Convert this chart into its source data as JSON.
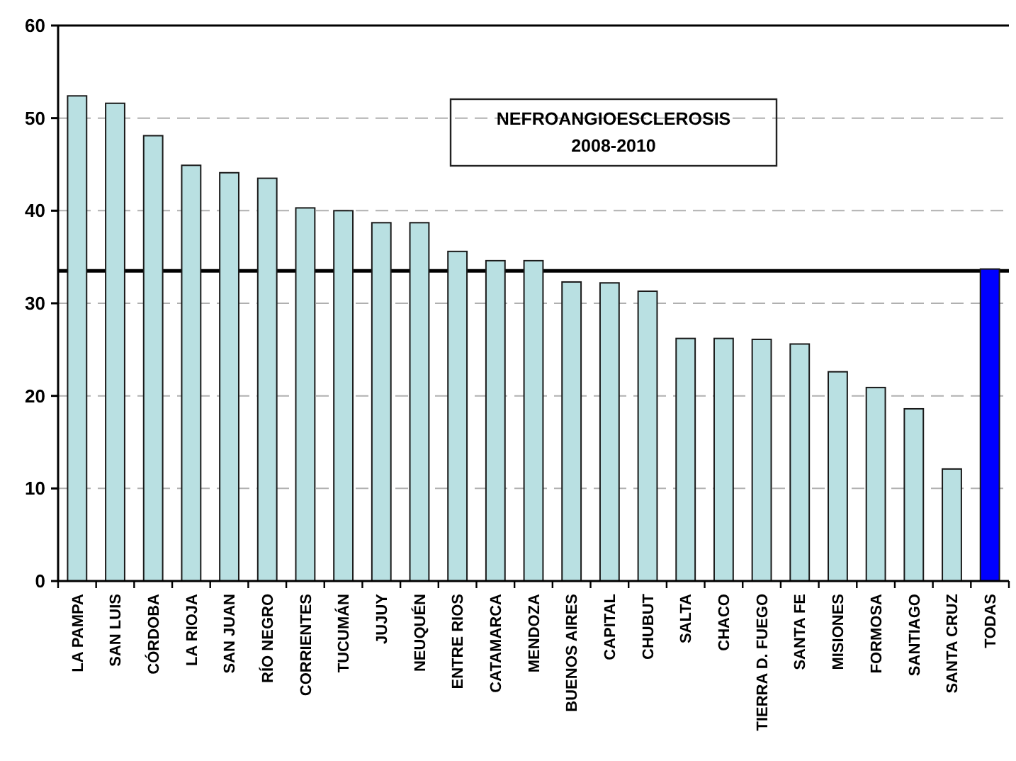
{
  "chart_data": {
    "type": "bar",
    "title": "NEFROANGIOESCLEROSIS",
    "subtitle": "2008-2010",
    "categories": [
      "LA PAMPA",
      "SAN LUIS",
      "CÓRDOBA",
      "LA RIOJA",
      "SAN JUAN",
      "RÍO NEGRO",
      "CORRIENTES",
      "TUCUMÁN",
      "JUJUY",
      "NEUQUÉN",
      "ENTRE RIOS",
      "CATAMARCA",
      "MENDOZA",
      "BUENOS AIRES",
      "CAPITAL",
      "CHUBUT",
      "SALTA",
      "CHACO",
      "TIERRA D. FUEGO",
      "SANTA FE",
      "MISIONES",
      "FORMOSA",
      "SANTIAGO",
      "SANTA CRUZ",
      "TODAS"
    ],
    "values": [
      52.4,
      51.6,
      48.1,
      44.9,
      44.1,
      43.5,
      40.3,
      40.0,
      38.7,
      38.7,
      35.6,
      34.6,
      34.6,
      32.3,
      32.2,
      31.3,
      26.2,
      26.2,
      26.1,
      25.6,
      22.6,
      20.9,
      18.6,
      12.1,
      33.7
    ],
    "colors": [
      "#b9e0e2",
      "#b9e0e2",
      "#b9e0e2",
      "#b9e0e2",
      "#b9e0e2",
      "#b9e0e2",
      "#b9e0e2",
      "#b9e0e2",
      "#b9e0e2",
      "#b9e0e2",
      "#b9e0e2",
      "#b9e0e2",
      "#b9e0e2",
      "#b9e0e2",
      "#b9e0e2",
      "#b9e0e2",
      "#b9e0e2",
      "#b9e0e2",
      "#b9e0e2",
      "#b9e0e2",
      "#b9e0e2",
      "#b9e0e2",
      "#b9e0e2",
      "#b9e0e2",
      "#0000ff"
    ],
    "ylim": [
      0,
      60
    ],
    "yticks": [
      0,
      10,
      20,
      30,
      40,
      50,
      60
    ],
    "grid": "y",
    "ref_lines": [
      {
        "axis": "y",
        "value": 33.5,
        "color": "#000000"
      }
    ]
  }
}
